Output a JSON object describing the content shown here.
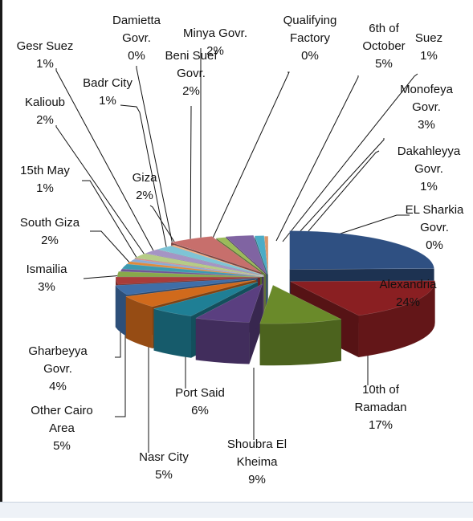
{
  "chart_data": {
    "type": "pie",
    "style": "3d-exploded",
    "slices": [
      {
        "name": "Alexandria",
        "percent": "24%",
        "value": 24,
        "color": "#2f5082"
      },
      {
        "name": "10th of Ramadan",
        "percent": "17%",
        "value": 17,
        "color": "#8a1f22"
      },
      {
        "name": "Shoubra El Kheima",
        "percent": "9%",
        "value": 9,
        "color": "#6a8a2a"
      },
      {
        "name": "Port Said",
        "percent": "6%",
        "value": 6,
        "color": "#5a3f80"
      },
      {
        "name": "Nasr City",
        "percent": "5%",
        "value": 5,
        "color": "#1f7f95"
      },
      {
        "name": "Other Cairo Area",
        "percent": "5%",
        "value": 5,
        "color": "#d06a1c"
      },
      {
        "name": "Gharbeyya Govr.",
        "percent": "4%",
        "value": 4,
        "color": "#3f6ea8"
      },
      {
        "name": "Ismailia",
        "percent": "3%",
        "value": 3,
        "color": "#a83c3a"
      },
      {
        "name": "South Giza",
        "percent": "2%",
        "value": 2,
        "color": "#88a84a"
      },
      {
        "name": "15th May",
        "percent": "1%",
        "value": 1,
        "color": "#6f5596"
      },
      {
        "name": "Kalioub",
        "percent": "2%",
        "value": 2,
        "color": "#3d9ab0"
      },
      {
        "name": "Gesr Suez",
        "percent": "1%",
        "value": 1,
        "color": "#e08a3c"
      },
      {
        "name": "Badr City",
        "percent": "1%",
        "value": 1,
        "color": "#8aaad6"
      },
      {
        "name": "Damietta Govr.",
        "percent": "0%",
        "value": 0.4,
        "color": "#d48a88"
      },
      {
        "name": "Giza",
        "percent": "2%",
        "value": 2,
        "color": "#b6cc86"
      },
      {
        "name": "Beni Suef Govr.",
        "percent": "2%",
        "value": 2,
        "color": "#a594c4"
      },
      {
        "name": "Minya Govr.",
        "percent": "2%",
        "value": 2,
        "color": "#7ec4d6"
      },
      {
        "name": "Qualifying Factory",
        "percent": "0%",
        "value": 0.4,
        "color": "#f4b183"
      },
      {
        "name": "6th of October",
        "percent": "5%",
        "value": 5,
        "color": "#c76f6c"
      },
      {
        "name": "Suez",
        "percent": "1%",
        "value": 1,
        "color": "#9bbb59"
      },
      {
        "name": "Monofeya Govr.",
        "percent": "3%",
        "value": 3,
        "color": "#8064a2"
      },
      {
        "name": "Dakahleyya Govr.",
        "percent": "1%",
        "value": 1,
        "color": "#4bacc6"
      },
      {
        "name": "EL Sharkia Govr.",
        "percent": "0%",
        "value": 0.4,
        "color": "#d8956a"
      }
    ],
    "labels": [
      {
        "slice": 0,
        "lines": [
          "Alexandria",
          "24%"
        ]
      },
      {
        "slice": 1,
        "lines": [
          "10th of",
          "Ramadan",
          "17%"
        ]
      },
      {
        "slice": 2,
        "lines": [
          "Shoubra El",
          "Kheima",
          "9%"
        ]
      },
      {
        "slice": 3,
        "lines": [
          "Port Said",
          "6%"
        ]
      },
      {
        "slice": 4,
        "lines": [
          "Nasr City",
          "5%"
        ]
      },
      {
        "slice": 5,
        "lines": [
          "Other Cairo",
          "Area",
          "5%"
        ]
      },
      {
        "slice": 6,
        "lines": [
          "Gharbeyya",
          "Govr.",
          "4%"
        ]
      },
      {
        "slice": 7,
        "lines": [
          "Ismailia",
          "3%"
        ]
      },
      {
        "slice": 8,
        "lines": [
          "South Giza",
          "2%"
        ]
      },
      {
        "slice": 9,
        "lines": [
          "15th May",
          "1%"
        ]
      },
      {
        "slice": 10,
        "lines": [
          "Kalioub",
          "2%"
        ]
      },
      {
        "slice": 11,
        "lines": [
          "Gesr Suez",
          "1%"
        ]
      },
      {
        "slice": 12,
        "lines": [
          "Badr City",
          "1%"
        ]
      },
      {
        "slice": 13,
        "lines": [
          "Damietta",
          "Govr.",
          "0%"
        ]
      },
      {
        "slice": 14,
        "lines": [
          "Giza",
          "2%"
        ]
      },
      {
        "slice": 15,
        "lines": [
          "Beni Suef",
          "Govr.",
          "2%"
        ]
      },
      {
        "slice": 16,
        "lines": [
          "Minya Govr.",
          "2%"
        ]
      },
      {
        "slice": 17,
        "lines": [
          "Qualifying",
          "Factory",
          "0%"
        ]
      },
      {
        "slice": 18,
        "lines": [
          "6th of",
          "October",
          "5%"
        ]
      },
      {
        "slice": 19,
        "lines": [
          "Suez",
          "1%"
        ]
      },
      {
        "slice": 20,
        "lines": [
          "Monofeya",
          "Govr.",
          "3%"
        ]
      },
      {
        "slice": 21,
        "lines": [
          "Dakahleyya",
          "Govr.",
          "1%"
        ]
      },
      {
        "slice": 22,
        "lines": [
          "EL Sharkia",
          "Govr.",
          "0%"
        ]
      }
    ],
    "title": "",
    "legend": "none",
    "grid": false
  }
}
